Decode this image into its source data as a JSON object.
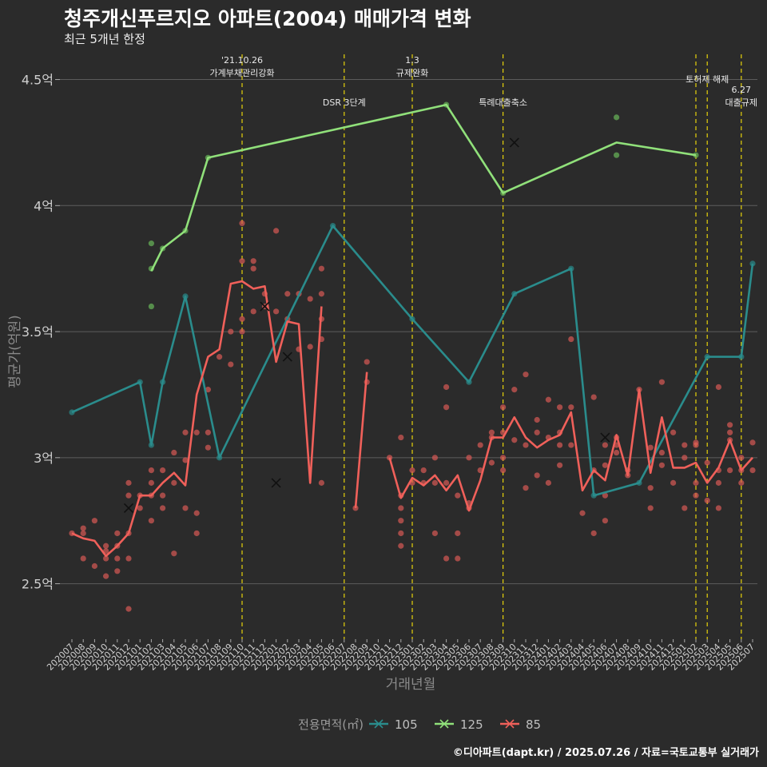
{
  "title": "청주개신푸르지오 아파트(2004) 매매가격 변화",
  "subtitle": "최근 5개년 한정",
  "caption": "©디아파트(dapt.kr) / 2025.07.26 / 자료=국토교통부 실거래가",
  "chart_data": {
    "type": "line",
    "xlabel": "거래년월",
    "ylabel": "평균가(억원)",
    "y_ticks": [
      2.5,
      3,
      3.5,
      4,
      4.5
    ],
    "y_tick_labels": [
      "2.5억",
      "3억",
      "3.5억",
      "4억",
      "4.5억"
    ],
    "ylim": [
      2.28,
      4.6
    ],
    "grid": true,
    "legend": {
      "title": "전용면적(㎡)",
      "position": "bottom"
    },
    "x_labels": [
      "202007",
      "202008",
      "202009",
      "202010",
      "202011",
      "202012",
      "202101",
      "202102",
      "202103",
      "202104",
      "202105",
      "202106",
      "202107",
      "202108",
      "202109",
      "202110",
      "202111",
      "202112",
      "202201",
      "202202",
      "202203",
      "202204",
      "202205",
      "202206",
      "202207",
      "202208",
      "202209",
      "202210",
      "202211",
      "202212",
      "202301",
      "202302",
      "202303",
      "202304",
      "202305",
      "202306",
      "202307",
      "202308",
      "202309",
      "202310",
      "202311",
      "202312",
      "202401",
      "202402",
      "202403",
      "202404",
      "202405",
      "202406",
      "202407",
      "202408",
      "202409",
      "202410",
      "202411",
      "202412",
      "202501",
      "202502",
      "202503",
      "202504",
      "202505",
      "202506",
      "202507"
    ],
    "events": [
      {
        "x": 15,
        "lines": [
          "'21.10.26",
          "가계부채관리강화"
        ],
        "level": 0
      },
      {
        "x": 24,
        "lines": [
          "DSR 3단계"
        ],
        "level": 1
      },
      {
        "x": 30,
        "lines": [
          "1.3",
          "규제완화"
        ],
        "level": 0
      },
      {
        "x": 38,
        "lines": [
          "특례대출축소"
        ],
        "level": 1
      },
      {
        "x": 55,
        "lines": [],
        "level": 0
      },
      {
        "x": 56,
        "lines": [
          "토허제 해제"
        ],
        "level": 0
      },
      {
        "x": 59,
        "lines": [
          "6.27",
          "대출규제"
        ],
        "level": 1
      }
    ],
    "series": [
      {
        "name": "105",
        "color": "#2a8c8c",
        "line": [
          [
            0,
            3.18
          ],
          [
            6,
            3.3
          ],
          [
            7,
            3.05
          ],
          [
            8,
            3.3
          ],
          [
            10,
            3.64
          ],
          [
            13,
            3.0
          ],
          [
            23,
            3.92
          ],
          [
            30,
            3.55
          ],
          [
            35,
            3.3
          ],
          [
            39,
            3.65
          ],
          [
            44,
            3.75
          ],
          [
            46,
            2.85
          ],
          [
            50,
            2.9
          ],
          [
            56,
            3.4
          ],
          [
            59,
            3.4
          ],
          [
            60,
            3.77
          ]
        ],
        "points": [
          [
            0,
            3.18
          ],
          [
            6,
            3.3
          ],
          [
            7,
            3.05
          ],
          [
            8,
            3.3
          ],
          [
            10,
            3.64
          ],
          [
            13,
            3.0
          ],
          [
            23,
            3.92
          ],
          [
            30,
            3.55
          ],
          [
            35,
            3.3
          ],
          [
            39,
            3.65
          ],
          [
            44,
            3.75
          ],
          [
            46,
            2.85
          ],
          [
            50,
            2.9
          ],
          [
            56,
            3.4
          ],
          [
            59,
            3.4
          ],
          [
            60,
            3.77
          ]
        ],
        "crosses": []
      },
      {
        "name": "125",
        "color": "#90e07a",
        "point_color": "#6ab85a",
        "line": [
          [
            7,
            3.74
          ],
          [
            8,
            3.83
          ],
          [
            10,
            3.9
          ],
          [
            12,
            4.19
          ],
          [
            33,
            4.4
          ],
          [
            38,
            4.05
          ],
          [
            48,
            4.25
          ],
          [
            55,
            4.2
          ]
        ],
        "points": [
          [
            7,
            3.85
          ],
          [
            7,
            3.75
          ],
          [
            7,
            3.6
          ],
          [
            8,
            3.83
          ],
          [
            10,
            3.9
          ],
          [
            12,
            4.19
          ],
          [
            33,
            4.4
          ],
          [
            38,
            4.05
          ],
          [
            48,
            4.35
          ],
          [
            48,
            4.2
          ],
          [
            55,
            4.2
          ]
        ],
        "crosses": [
          [
            39,
            4.25
          ]
        ]
      },
      {
        "name": "85",
        "color": "#f0605a",
        "point_color": "#d85a55",
        "line_segments": [
          [
            [
              0,
              2.7
            ],
            [
              1,
              2.68
            ],
            [
              2,
              2.67
            ],
            [
              3,
              2.61
            ],
            [
              4,
              2.65
            ],
            [
              5,
              2.7
            ],
            [
              6,
              2.85
            ],
            [
              7,
              2.85
            ],
            [
              8,
              2.9
            ],
            [
              9,
              2.94
            ],
            [
              10,
              2.89
            ],
            [
              11,
              3.25
            ],
            [
              12,
              3.4
            ],
            [
              13,
              3.43
            ],
            [
              14,
              3.69
            ],
            [
              15,
              3.7
            ],
            [
              16,
              3.67
            ],
            [
              17,
              3.68
            ],
            [
              18,
              3.38
            ],
            [
              19,
              3.54
            ],
            [
              20,
              3.53
            ],
            [
              21,
              2.9
            ],
            [
              22,
              3.6
            ]
          ],
          [
            [
              25,
              2.8
            ],
            [
              26,
              3.34
            ]
          ],
          [
            [
              28,
              3.0
            ],
            [
              29,
              2.84
            ],
            [
              30,
              2.92
            ],
            [
              31,
              2.89
            ],
            [
              32,
              2.93
            ],
            [
              33,
              2.87
            ],
            [
              34,
              2.93
            ],
            [
              35,
              2.79
            ],
            [
              36,
              2.91
            ],
            [
              37,
              3.08
            ],
            [
              38,
              3.08
            ],
            [
              39,
              3.16
            ],
            [
              40,
              3.08
            ],
            [
              41,
              3.04
            ],
            [
              42,
              3.07
            ],
            [
              43,
              3.09
            ],
            [
              44,
              3.18
            ],
            [
              45,
              2.87
            ],
            [
              46,
              2.95
            ],
            [
              47,
              2.91
            ],
            [
              48,
              3.09
            ],
            [
              49,
              2.93
            ],
            [
              50,
              3.27
            ],
            [
              51,
              2.94
            ],
            [
              52,
              3.16
            ],
            [
              53,
              2.96
            ],
            [
              54,
              2.96
            ],
            [
              55,
              2.98
            ],
            [
              56,
              2.9
            ],
            [
              57,
              2.96
            ],
            [
              58,
              3.07
            ],
            [
              59,
              2.95
            ],
            [
              60,
              3.0
            ]
          ]
        ],
        "points": [
          [
            0,
            2.7
          ],
          [
            1,
            2.72
          ],
          [
            1,
            2.7
          ],
          [
            1,
            2.6
          ],
          [
            2,
            2.75
          ],
          [
            2,
            2.57
          ],
          [
            3,
            2.65
          ],
          [
            3,
            2.63
          ],
          [
            3,
            2.6
          ],
          [
            3,
            2.53
          ],
          [
            4,
            2.7
          ],
          [
            4,
            2.65
          ],
          [
            4,
            2.6
          ],
          [
            4,
            2.55
          ],
          [
            5,
            2.9
          ],
          [
            5,
            2.85
          ],
          [
            5,
            2.7
          ],
          [
            5,
            2.6
          ],
          [
            5,
            2.4
          ],
          [
            6,
            2.85
          ],
          [
            6,
            2.8
          ],
          [
            7,
            2.95
          ],
          [
            7,
            2.9
          ],
          [
            7,
            2.85
          ],
          [
            7,
            2.75
          ],
          [
            8,
            2.95
          ],
          [
            8,
            2.85
          ],
          [
            8,
            2.8
          ],
          [
            9,
            3.02
          ],
          [
            9,
            2.9
          ],
          [
            9,
            2.62
          ],
          [
            10,
            3.1
          ],
          [
            10,
            2.99
          ],
          [
            10,
            2.8
          ],
          [
            11,
            3.1
          ],
          [
            11,
            2.78
          ],
          [
            11,
            2.7
          ],
          [
            12,
            3.27
          ],
          [
            12,
            3.1
          ],
          [
            12,
            3.04
          ],
          [
            13,
            3.4
          ],
          [
            14,
            3.5
          ],
          [
            14,
            3.37
          ],
          [
            15,
            3.93
          ],
          [
            15,
            3.78
          ],
          [
            15,
            3.55
          ],
          [
            15,
            3.5
          ],
          [
            16,
            3.78
          ],
          [
            16,
            3.75
          ],
          [
            16,
            3.58
          ],
          [
            17,
            3.65
          ],
          [
            17,
            3.6
          ],
          [
            18,
            3.9
          ],
          [
            18,
            3.58
          ],
          [
            19,
            3.65
          ],
          [
            19,
            3.55
          ],
          [
            20,
            3.65
          ],
          [
            20,
            3.43
          ],
          [
            21,
            3.63
          ],
          [
            21,
            3.44
          ],
          [
            22,
            3.75
          ],
          [
            22,
            3.65
          ],
          [
            22,
            3.55
          ],
          [
            22,
            3.47
          ],
          [
            22,
            2.9
          ],
          [
            25,
            2.8
          ],
          [
            26,
            3.38
          ],
          [
            26,
            3.3
          ],
          [
            28,
            3.0
          ],
          [
            29,
            3.08
          ],
          [
            29,
            2.85
          ],
          [
            29,
            2.8
          ],
          [
            29,
            2.75
          ],
          [
            29,
            2.7
          ],
          [
            29,
            2.65
          ],
          [
            30,
            2.95
          ],
          [
            30,
            2.9
          ],
          [
            31,
            2.95
          ],
          [
            31,
            2.9
          ],
          [
            32,
            3.0
          ],
          [
            32,
            2.9
          ],
          [
            32,
            2.7
          ],
          [
            33,
            3.28
          ],
          [
            33,
            3.2
          ],
          [
            33,
            2.9
          ],
          [
            33,
            2.6
          ],
          [
            34,
            2.85
          ],
          [
            34,
            2.7
          ],
          [
            34,
            2.6
          ],
          [
            35,
            3.0
          ],
          [
            35,
            2.82
          ],
          [
            35,
            2.8
          ],
          [
            36,
            3.05
          ],
          [
            36,
            2.95
          ],
          [
            37,
            3.1
          ],
          [
            37,
            3.08
          ],
          [
            37,
            2.98
          ],
          [
            38,
            3.2
          ],
          [
            38,
            3.1
          ],
          [
            38,
            3.0
          ],
          [
            38,
            2.95
          ],
          [
            39,
            3.27
          ],
          [
            39,
            3.07
          ],
          [
            40,
            3.33
          ],
          [
            40,
            3.05
          ],
          [
            40,
            2.88
          ],
          [
            41,
            3.15
          ],
          [
            41,
            3.1
          ],
          [
            41,
            2.93
          ],
          [
            42,
            3.23
          ],
          [
            42,
            3.08
          ],
          [
            42,
            2.9
          ],
          [
            43,
            3.2
          ],
          [
            43,
            3.1
          ],
          [
            43,
            3.05
          ],
          [
            43,
            2.97
          ],
          [
            44,
            3.47
          ],
          [
            44,
            3.2
          ],
          [
            44,
            3.05
          ],
          [
            45,
            2.78
          ],
          [
            46,
            3.24
          ],
          [
            46,
            2.95
          ],
          [
            46,
            2.7
          ],
          [
            47,
            3.05
          ],
          [
            47,
            2.97
          ],
          [
            47,
            2.85
          ],
          [
            47,
            2.75
          ],
          [
            48,
            3.08
          ],
          [
            48,
            3.05
          ],
          [
            48,
            3.02
          ],
          [
            49,
            2.95
          ],
          [
            49,
            2.93
          ],
          [
            50,
            3.27
          ],
          [
            51,
            3.04
          ],
          [
            51,
            2.88
          ],
          [
            51,
            2.8
          ],
          [
            52,
            3.3
          ],
          [
            52,
            3.02
          ],
          [
            52,
            2.97
          ],
          [
            53,
            3.1
          ],
          [
            53,
            2.9
          ],
          [
            54,
            3.05
          ],
          [
            54,
            3.0
          ],
          [
            54,
            2.8
          ],
          [
            55,
            3.06
          ],
          [
            55,
            3.05
          ],
          [
            55,
            2.9
          ],
          [
            55,
            2.85
          ],
          [
            56,
            2.98
          ],
          [
            56,
            2.83
          ],
          [
            57,
            3.28
          ],
          [
            57,
            2.95
          ],
          [
            57,
            2.9
          ],
          [
            57,
            2.8
          ],
          [
            58,
            3.13
          ],
          [
            58,
            3.1
          ],
          [
            58,
            3.07
          ],
          [
            58,
            2.95
          ],
          [
            59,
            3.0
          ],
          [
            59,
            2.95
          ],
          [
            59,
            2.9
          ],
          [
            60,
            3.06
          ],
          [
            60,
            2.95
          ]
        ],
        "crosses": [
          [
            5,
            2.8
          ],
          [
            17,
            3.6
          ],
          [
            18,
            2.9
          ],
          [
            19,
            3.4
          ],
          [
            47,
            3.08
          ]
        ]
      }
    ]
  }
}
